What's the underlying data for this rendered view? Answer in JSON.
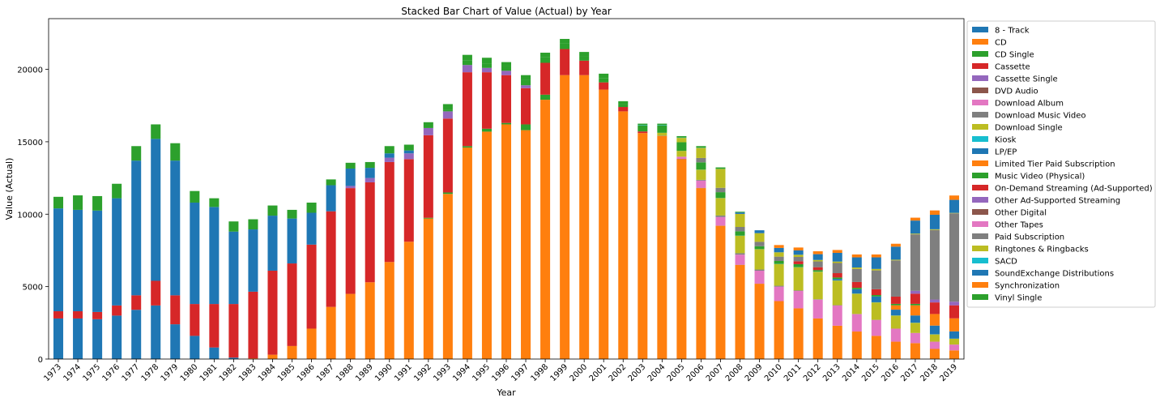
{
  "chart_data": {
    "type": "bar",
    "stacked": true,
    "title": "Stacked Bar Chart of Value (Actual) by Year",
    "xlabel": "Year",
    "ylabel": "Value (Actual)",
    "ylim": [
      0,
      23500
    ],
    "yticks": [
      0,
      5000,
      10000,
      15000,
      20000
    ],
    "grid": false,
    "legend_position": "outside right",
    "categories": [
      "1973",
      "1974",
      "1975",
      "1976",
      "1977",
      "1978",
      "1979",
      "1980",
      "1981",
      "1982",
      "1983",
      "1984",
      "1985",
      "1986",
      "1987",
      "1988",
      "1989",
      "1990",
      "1991",
      "1992",
      "1993",
      "1994",
      "1995",
      "1996",
      "1997",
      "1998",
      "1999",
      "2000",
      "2001",
      "2002",
      "2003",
      "2004",
      "2005",
      "2006",
      "2007",
      "2008",
      "2009",
      "2010",
      "2011",
      "2012",
      "2013",
      "2014",
      "2015",
      "2016",
      "2017",
      "2018",
      "2019"
    ],
    "series": [
      {
        "name": "8 - Track",
        "color": "#1f77b4",
        "values": [
          2800,
          2800,
          2750,
          3000,
          3400,
          3700,
          2400,
          1600,
          800,
          100,
          0,
          0,
          0,
          0,
          0,
          0,
          0,
          0,
          0,
          0,
          0,
          0,
          0,
          0,
          0,
          0,
          0,
          0,
          0,
          0,
          0,
          0,
          0,
          0,
          0,
          0,
          0,
          0,
          0,
          0,
          0,
          0,
          0,
          0,
          0,
          0,
          0
        ]
      },
      {
        "name": "CD",
        "color": "#ff7f0e",
        "values": [
          0,
          0,
          0,
          0,
          0,
          0,
          0,
          0,
          0,
          0,
          50,
          300,
          900,
          2100,
          3600,
          4500,
          5300,
          6700,
          8100,
          9700,
          11400,
          14600,
          15700,
          16200,
          15800,
          17900,
          19600,
          19600,
          18600,
          17100,
          15600,
          15400,
          13800,
          11800,
          9200,
          6500,
          5200,
          4000,
          3500,
          2800,
          2300,
          1900,
          1600,
          1200,
          1100,
          700,
          600
        ]
      },
      {
        "name": "CD Single",
        "color": "#2ca02c",
        "values": [
          0,
          0,
          0,
          0,
          0,
          0,
          0,
          0,
          0,
          0,
          0,
          0,
          0,
          0,
          0,
          0,
          0,
          0,
          0,
          50,
          100,
          100,
          200,
          100,
          400,
          350,
          0,
          0,
          0,
          0,
          0,
          0,
          0,
          0,
          0,
          0,
          0,
          0,
          0,
          0,
          0,
          0,
          0,
          0,
          0,
          0,
          0
        ]
      },
      {
        "name": "Cassette",
        "color": "#d62728",
        "values": [
          500,
          500,
          500,
          700,
          1000,
          1700,
          2000,
          2200,
          3000,
          3700,
          4600,
          5800,
          5700,
          5800,
          6600,
          7300,
          6900,
          6900,
          5700,
          5700,
          5100,
          5100,
          3900,
          3300,
          2500,
          2200,
          1800,
          1000,
          500,
          300,
          100,
          0,
          0,
          0,
          0,
          0,
          0,
          0,
          0,
          0,
          0,
          0,
          0,
          0,
          0,
          0,
          0
        ]
      },
      {
        "name": "Cassette Single",
        "color": "#9467bd",
        "values": [
          0,
          0,
          0,
          0,
          0,
          0,
          0,
          0,
          0,
          0,
          0,
          0,
          0,
          0,
          0,
          150,
          300,
          300,
          400,
          500,
          500,
          500,
          300,
          300,
          200,
          0,
          0,
          0,
          0,
          0,
          0,
          0,
          0,
          0,
          0,
          0,
          0,
          0,
          0,
          0,
          0,
          0,
          0,
          0,
          0,
          0,
          0
        ]
      },
      {
        "name": "DVD Audio",
        "color": "#8c564b",
        "values": [
          0,
          0,
          0,
          0,
          0,
          0,
          0,
          0,
          0,
          0,
          0,
          0,
          0,
          0,
          0,
          0,
          0,
          0,
          0,
          0,
          0,
          0,
          0,
          0,
          0,
          0,
          0,
          0,
          0,
          0,
          20,
          20,
          20,
          20,
          10,
          10,
          0,
          0,
          0,
          0,
          0,
          0,
          0,
          0,
          0,
          0,
          0
        ]
      },
      {
        "name": "Download Album",
        "color": "#e377c2",
        "values": [
          0,
          0,
          0,
          0,
          0,
          0,
          0,
          0,
          0,
          0,
          0,
          0,
          0,
          0,
          0,
          0,
          0,
          0,
          0,
          0,
          0,
          0,
          0,
          0,
          0,
          0,
          0,
          0,
          0,
          0,
          0,
          0,
          150,
          500,
          600,
          700,
          900,
          1000,
          1200,
          1300,
          1400,
          1200,
          1100,
          900,
          700,
          500,
          400
        ]
      },
      {
        "name": "Download Music Video",
        "color": "#7f7f7f",
        "values": [
          0,
          0,
          0,
          0,
          0,
          0,
          0,
          0,
          0,
          0,
          0,
          0,
          0,
          0,
          0,
          0,
          0,
          0,
          0,
          0,
          0,
          0,
          0,
          0,
          0,
          0,
          0,
          0,
          0,
          0,
          0,
          0,
          0,
          50,
          100,
          100,
          80,
          60,
          40,
          30,
          20,
          10,
          10,
          0,
          0,
          0,
          0
        ]
      },
      {
        "name": "Download Single",
        "color": "#bcbd22",
        "values": [
          0,
          0,
          0,
          0,
          0,
          0,
          0,
          0,
          0,
          0,
          0,
          0,
          0,
          0,
          0,
          0,
          0,
          0,
          0,
          0,
          0,
          0,
          0,
          0,
          0,
          0,
          0,
          0,
          0,
          0,
          0,
          200,
          400,
          700,
          1200,
          1200,
          1400,
          1500,
          1600,
          1900,
          1700,
          1400,
          1200,
          900,
          700,
          500,
          400
        ]
      },
      {
        "name": "Kiosk",
        "color": "#17becf",
        "values": [
          0,
          0,
          0,
          0,
          0,
          0,
          0,
          0,
          0,
          0,
          0,
          0,
          0,
          0,
          0,
          0,
          0,
          0,
          0,
          0,
          0,
          0,
          0,
          0,
          0,
          0,
          0,
          0,
          0,
          0,
          0,
          0,
          0,
          10,
          10,
          10,
          10,
          10,
          10,
          10,
          10,
          10,
          10,
          10,
          10,
          10,
          10
        ]
      },
      {
        "name": "LP/EP",
        "color": "#1f77b4",
        "values": [
          7100,
          7000,
          7000,
          7400,
          9300,
          9800,
          9300,
          7000,
          6700,
          5000,
          4300,
          3800,
          3100,
          2200,
          1800,
          1200,
          700,
          300,
          200,
          0,
          0,
          0,
          0,
          0,
          0,
          0,
          0,
          0,
          0,
          0,
          0,
          0,
          0,
          0,
          0,
          0,
          0,
          0,
          0,
          0,
          100,
          300,
          400,
          400,
          500,
          600,
          500
        ]
      },
      {
        "name": "Limited Tier Paid Subscription",
        "color": "#ff7f0e",
        "values": [
          0,
          0,
          0,
          0,
          0,
          0,
          0,
          0,
          0,
          0,
          0,
          0,
          0,
          0,
          0,
          0,
          0,
          0,
          0,
          0,
          0,
          0,
          0,
          0,
          0,
          0,
          0,
          0,
          0,
          0,
          0,
          0,
          0,
          0,
          0,
          0,
          0,
          0,
          0,
          0,
          0,
          0,
          0,
          300,
          700,
          800,
          900
        ]
      },
      {
        "name": "Music Video (Physical)",
        "color": "#2ca02c",
        "values": [
          0,
          0,
          0,
          0,
          0,
          0,
          0,
          0,
          0,
          0,
          0,
          0,
          0,
          0,
          0,
          0,
          0,
          0,
          0,
          0,
          100,
          300,
          300,
          300,
          400,
          400,
          400,
          300,
          300,
          200,
          400,
          500,
          600,
          500,
          400,
          300,
          200,
          200,
          200,
          100,
          100,
          100,
          100,
          100,
          100,
          0,
          0
        ]
      },
      {
        "name": "On-Demand Streaming (Ad-Supported)",
        "color": "#d62728",
        "values": [
          0,
          0,
          0,
          0,
          0,
          0,
          0,
          0,
          0,
          0,
          0,
          0,
          0,
          0,
          0,
          0,
          0,
          0,
          0,
          0,
          0,
          0,
          0,
          0,
          0,
          0,
          0,
          0,
          0,
          0,
          0,
          0,
          0,
          0,
          0,
          0,
          0,
          0,
          200,
          200,
          300,
          400,
          400,
          500,
          700,
          800,
          900
        ]
      },
      {
        "name": "Other Ad-Supported Streaming",
        "color": "#9467bd",
        "values": [
          0,
          0,
          0,
          0,
          0,
          0,
          0,
          0,
          0,
          0,
          0,
          0,
          0,
          0,
          0,
          0,
          0,
          0,
          0,
          0,
          0,
          0,
          0,
          0,
          0,
          0,
          0,
          0,
          0,
          0,
          0,
          0,
          0,
          0,
          0,
          0,
          0,
          0,
          0,
          0,
          0,
          0,
          0,
          0,
          200,
          200,
          250
        ]
      },
      {
        "name": "Other Digital",
        "color": "#8c564b",
        "values": [
          0,
          0,
          0,
          0,
          0,
          0,
          0,
          0,
          0,
          0,
          0,
          0,
          0,
          0,
          0,
          0,
          0,
          0,
          0,
          0,
          0,
          0,
          0,
          0,
          0,
          0,
          0,
          0,
          0,
          0,
          0,
          0,
          0,
          0,
          0,
          0,
          0,
          0,
          0,
          0,
          0,
          0,
          0,
          0,
          0,
          0,
          0
        ]
      },
      {
        "name": "Other Tapes",
        "color": "#e377c2",
        "values": [
          0,
          0,
          0,
          0,
          0,
          0,
          0,
          0,
          0,
          0,
          0,
          0,
          0,
          0,
          0,
          0,
          0,
          0,
          0,
          0,
          0,
          0,
          0,
          0,
          0,
          0,
          0,
          0,
          0,
          0,
          0,
          0,
          0,
          0,
          0,
          0,
          0,
          0,
          0,
          0,
          0,
          0,
          0,
          0,
          0,
          0,
          0
        ]
      },
      {
        "name": "Paid Subscription",
        "color": "#7f7f7f",
        "values": [
          0,
          0,
          0,
          0,
          0,
          0,
          0,
          0,
          0,
          0,
          0,
          0,
          0,
          0,
          0,
          0,
          0,
          0,
          0,
          0,
          0,
          0,
          0,
          0,
          0,
          0,
          0,
          0,
          0,
          0,
          0,
          0,
          0,
          300,
          300,
          300,
          300,
          300,
          300,
          400,
          700,
          900,
          1300,
          2500,
          3900,
          4800,
          6100
        ]
      },
      {
        "name": "Ringtones & Ringbacks",
        "color": "#bcbd22",
        "values": [
          0,
          0,
          0,
          0,
          0,
          0,
          0,
          0,
          0,
          0,
          0,
          0,
          0,
          0,
          0,
          0,
          0,
          0,
          0,
          0,
          0,
          0,
          0,
          0,
          0,
          0,
          0,
          0,
          0,
          0,
          0,
          0,
          300,
          700,
          1300,
          900,
          600,
          300,
          150,
          100,
          100,
          100,
          100,
          50,
          50,
          50,
          30
        ]
      },
      {
        "name": "SACD",
        "color": "#17becf",
        "values": [
          0,
          0,
          0,
          0,
          0,
          0,
          0,
          0,
          0,
          0,
          0,
          0,
          0,
          0,
          0,
          0,
          0,
          0,
          0,
          0,
          0,
          0,
          0,
          0,
          0,
          0,
          0,
          0,
          0,
          0,
          30,
          30,
          20,
          20,
          10,
          0,
          0,
          0,
          0,
          0,
          0,
          0,
          0,
          0,
          0,
          0,
          0
        ]
      },
      {
        "name": "SoundExchange Distributions",
        "color": "#1f77b4",
        "values": [
          0,
          0,
          0,
          0,
          0,
          0,
          0,
          0,
          0,
          0,
          0,
          0,
          0,
          0,
          0,
          0,
          0,
          0,
          0,
          0,
          0,
          0,
          0,
          0,
          0,
          0,
          0,
          0,
          0,
          0,
          0,
          0,
          0,
          0,
          0,
          100,
          200,
          300,
          300,
          400,
          600,
          700,
          800,
          900,
          900,
          1000,
          900
        ]
      },
      {
        "name": "Synchronization",
        "color": "#ff7f0e",
        "values": [
          0,
          0,
          0,
          0,
          0,
          0,
          0,
          0,
          0,
          0,
          0,
          0,
          0,
          0,
          0,
          0,
          0,
          0,
          0,
          0,
          0,
          0,
          0,
          0,
          0,
          0,
          0,
          0,
          0,
          0,
          0,
          0,
          0,
          0,
          0,
          0,
          0,
          200,
          200,
          200,
          200,
          200,
          200,
          200,
          200,
          300,
          300
        ]
      },
      {
        "name": "Vinyl Single",
        "color": "#2ca02c",
        "values": [
          800,
          1000,
          1000,
          1000,
          1000,
          1000,
          1200,
          800,
          600,
          700,
          700,
          700,
          600,
          700,
          400,
          400,
          400,
          500,
          400,
          400,
          400,
          400,
          400,
          300,
          300,
          300,
          300,
          300,
          300,
          200,
          100,
          100,
          100,
          100,
          100,
          50,
          0,
          0,
          0,
          0,
          0,
          0,
          0,
          0,
          0,
          0,
          0
        ]
      }
    ]
  }
}
